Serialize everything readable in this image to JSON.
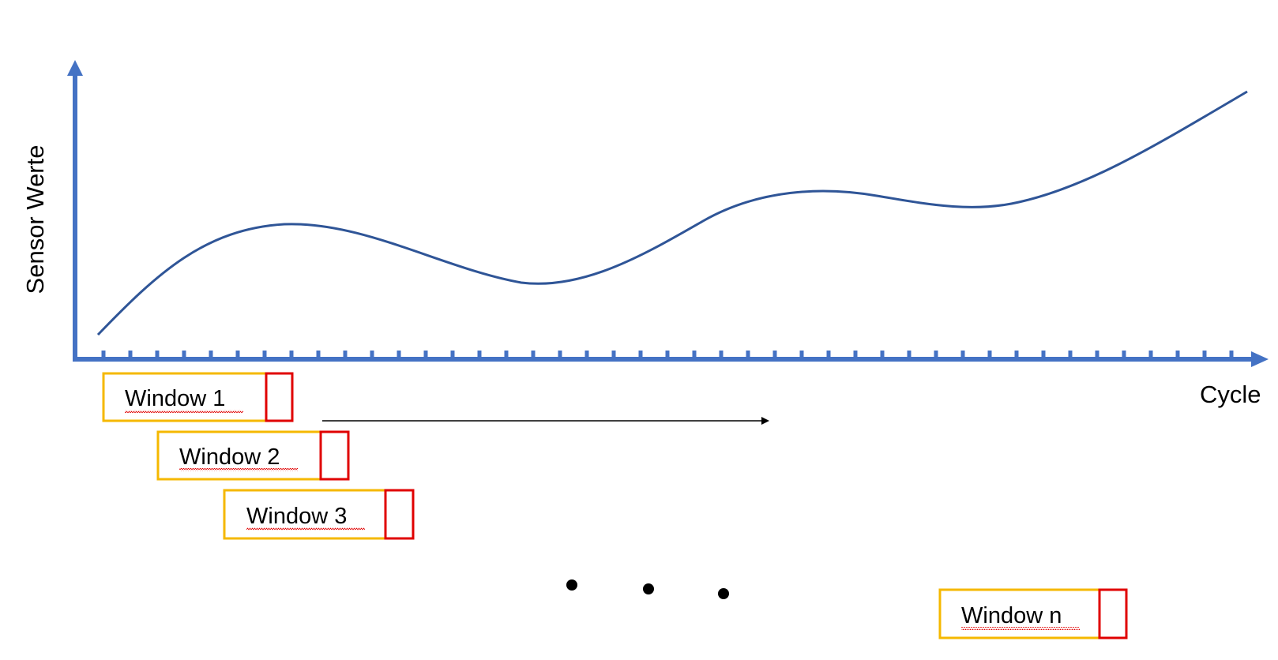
{
  "axes": {
    "y_label": "Sensor Werte",
    "x_label": "Cycle",
    "color": "#4472C4"
  },
  "curve": {
    "color": "#2F5597"
  },
  "windows": [
    {
      "label": "Window 1"
    },
    {
      "label": "Window 2"
    },
    {
      "label": "Window 3"
    },
    {
      "label": "Window n"
    }
  ],
  "colors": {
    "window_border": "#F5B800",
    "target_border": "#E00000",
    "arrow": "#000000",
    "spellcheck": "#E00000"
  },
  "ellipsis": "• • •"
}
